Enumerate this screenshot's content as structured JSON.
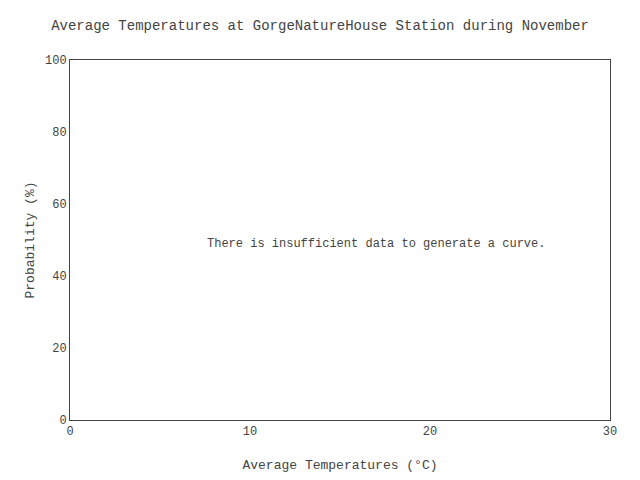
{
  "chart_data": {
    "type": "line",
    "title": "Average Temperatures at GorgeNatureHouse Station during November",
    "xlabel": "Average Temperatures (°C)",
    "ylabel": "Probability (%)",
    "xlim": [
      0,
      30
    ],
    "ylim": [
      0,
      100
    ],
    "xticks": [
      0,
      10,
      20,
      30
    ],
    "yticks": [
      0,
      20,
      40,
      60,
      80,
      100
    ],
    "series": [],
    "annotations": [
      {
        "text": "There is insufficient data to generate a curve.",
        "x": 7.5,
        "y": 49
      }
    ],
    "grid": false
  }
}
